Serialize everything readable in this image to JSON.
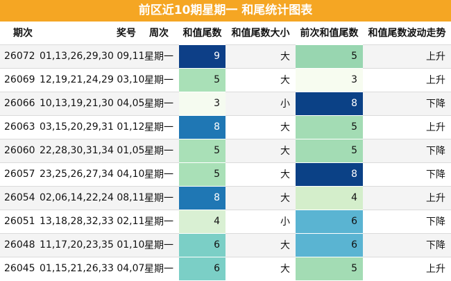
{
  "title": "前区近10期星期一 和尾统计图表",
  "headers": {
    "period": "期次",
    "numbers": "奖号",
    "weekday": "周次",
    "sum_tail": "和值尾数",
    "tail_size": "和值尾数大小",
    "prev_sum_tail": "前次和值尾数",
    "trend": "和值尾数波动走势"
  },
  "rows": [
    {
      "period": "26072",
      "numbers": "01,13,26,29,30 09,11",
      "weekday": "星期一",
      "sum_tail": "9",
      "tail_size": "大",
      "prev_sum_tail": "5",
      "trend": "上升",
      "sum_bg": "#0d3f87",
      "sum_fg": "#ffffff",
      "prev_bg": "#98d6b0",
      "prev_fg": "#111111"
    },
    {
      "period": "26069",
      "numbers": "12,19,21,24,29 03,10",
      "weekday": "星期一",
      "sum_tail": "5",
      "tail_size": "大",
      "prev_sum_tail": "3",
      "trend": "上升",
      "sum_bg": "#a9e0b7",
      "sum_fg": "#111111",
      "prev_bg": "#f7fcf0",
      "prev_fg": "#111111"
    },
    {
      "period": "26066",
      "numbers": "10,13,19,21,30 04,05",
      "weekday": "星期一",
      "sum_tail": "3",
      "tail_size": "小",
      "prev_sum_tail": "8",
      "trend": "下降",
      "sum_bg": "#f5fbf0",
      "sum_fg": "#111111",
      "prev_bg": "#0b4186",
      "prev_fg": "#ffffff"
    },
    {
      "period": "26063",
      "numbers": "03,15,20,29,31 01,12",
      "weekday": "星期一",
      "sum_tail": "8",
      "tail_size": "大",
      "prev_sum_tail": "5",
      "trend": "上升",
      "sum_bg": "#1f77b4",
      "sum_fg": "#ffffff",
      "prev_bg": "#a3dcb4",
      "prev_fg": "#111111"
    },
    {
      "period": "26060",
      "numbers": "22,28,30,31,34 01,05",
      "weekday": "星期一",
      "sum_tail": "5",
      "tail_size": "大",
      "prev_sum_tail": "5",
      "trend": "下降",
      "sum_bg": "#a9e0b7",
      "sum_fg": "#111111",
      "prev_bg": "#a3dcb4",
      "prev_fg": "#111111"
    },
    {
      "period": "26057",
      "numbers": "23,25,26,27,34 04,10",
      "weekday": "星期一",
      "sum_tail": "5",
      "tail_size": "大",
      "prev_sum_tail": "8",
      "trend": "下降",
      "sum_bg": "#a9e0b7",
      "sum_fg": "#111111",
      "prev_bg": "#0b4186",
      "prev_fg": "#ffffff"
    },
    {
      "period": "26054",
      "numbers": "02,06,14,22,24 08,11",
      "weekday": "星期一",
      "sum_tail": "8",
      "tail_size": "大",
      "prev_sum_tail": "4",
      "trend": "上升",
      "sum_bg": "#1f77b4",
      "sum_fg": "#ffffff",
      "prev_bg": "#d4eecb",
      "prev_fg": "#111111"
    },
    {
      "period": "26051",
      "numbers": "13,18,28,32,33 02,11",
      "weekday": "星期一",
      "sum_tail": "4",
      "tail_size": "小",
      "prev_sum_tail": "6",
      "trend": "下降",
      "sum_bg": "#d9f0d3",
      "sum_fg": "#111111",
      "prev_bg": "#5ab4d2",
      "prev_fg": "#111111"
    },
    {
      "period": "26048",
      "numbers": "11,17,20,23,35 01,10",
      "weekday": "星期一",
      "sum_tail": "6",
      "tail_size": "大",
      "prev_sum_tail": "6",
      "trend": "下降",
      "sum_bg": "#7bcfc6",
      "sum_fg": "#111111",
      "prev_bg": "#5ab4d2",
      "prev_fg": "#111111"
    },
    {
      "period": "26045",
      "numbers": "01,15,21,26,33 04,07",
      "weekday": "星期一",
      "sum_tail": "6",
      "tail_size": "大",
      "prev_sum_tail": "5",
      "trend": "上升",
      "sum_bg": "#7bcfc6",
      "sum_fg": "#111111",
      "prev_bg": "#a3dcb4",
      "prev_fg": "#111111"
    }
  ]
}
